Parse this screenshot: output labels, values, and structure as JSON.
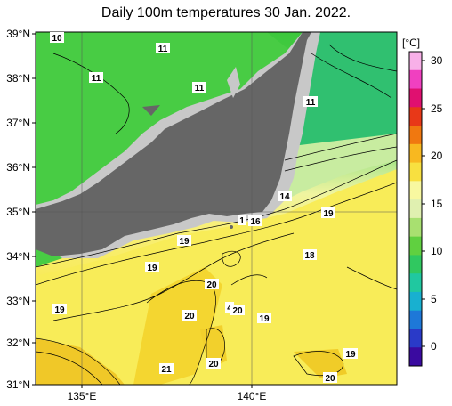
{
  "title": "Daily 100m temperatures 30 Jan. 2022.",
  "lat_labels": [
    "39°N",
    "38°N",
    "37°N",
    "36°N",
    "35°N",
    "34°N",
    "33°N",
    "32°N",
    "31°N"
  ],
  "lon_labels": [
    "135°E",
    "140°E"
  ],
  "colorbar": {
    "unit": "[°C]",
    "ticks": [
      "30",
      "25",
      "20",
      "15",
      "10",
      "5",
      "0"
    ],
    "colors": [
      "#3a0aa0",
      "#2a3ac8",
      "#1e78d8",
      "#18b0d0",
      "#20c8a0",
      "#30c860",
      "#60d040",
      "#a8e070",
      "#e0f0b0",
      "#f8f8a0",
      "#f8e040",
      "#f8b820",
      "#f07810",
      "#e83818",
      "#e01070",
      "#f040c0",
      "#f8b0e8"
    ]
  },
  "colors": {
    "land": "#666666",
    "shelf": "#c8c8c8",
    "cold_water": "#40c840",
    "warm_water": "#f8e848"
  },
  "contour_labels": [
    "10",
    "11",
    "11",
    "11",
    "11",
    "14",
    "1",
    "16",
    "19",
    "19",
    "18",
    "19",
    "20",
    "20",
    "4",
    "20",
    "19",
    "19",
    "21",
    "20",
    "20",
    "19"
  ]
}
